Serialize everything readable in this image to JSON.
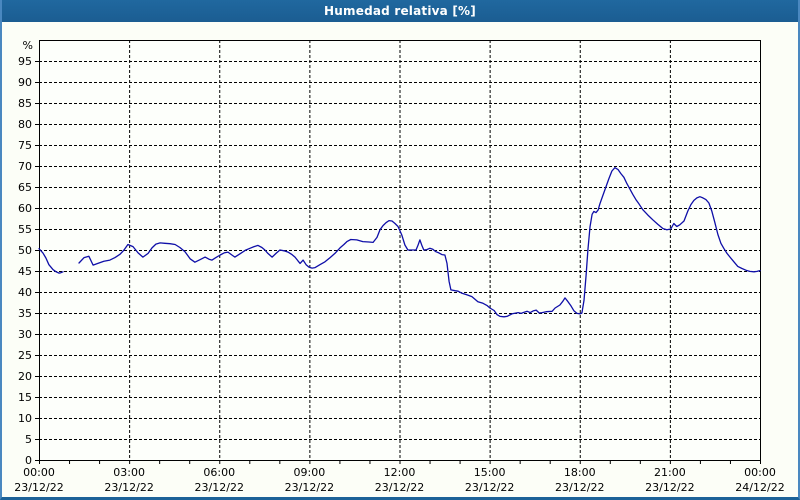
{
  "window": {
    "title": "Humedad relativa [%]"
  },
  "colors": {
    "titlebar": "#1d6298",
    "titlebar_text": "#ffffff",
    "frame_side": "#4a88c0",
    "content_bg": "#fcfef7",
    "plot_bg": "#fdfffb",
    "plot_border": "#000000",
    "grid": "#000000",
    "line": "#0f0fa8",
    "label_text": "#000000"
  },
  "chart_data": {
    "type": "line",
    "title": "Humedad relativa [%]",
    "unit_label": "%",
    "xlabel": "",
    "ylabel": "%",
    "xlim_hours": [
      0,
      24
    ],
    "ylim": [
      0,
      100
    ],
    "grid": "dashed",
    "legend": "none",
    "y_tick_step": 5,
    "y_tick_labels": [
      "0",
      "5",
      "10",
      "15",
      "20",
      "25",
      "30",
      "35",
      "40",
      "45",
      "50",
      "55",
      "60",
      "65",
      "70",
      "75",
      "80",
      "85",
      "90",
      "95"
    ],
    "x_minor_tick_every_hours": 1,
    "x_major_tick_every_hours": 3,
    "x_ticks": [
      {
        "hour": 0,
        "time": "00:00",
        "date": "23/12/22"
      },
      {
        "hour": 3,
        "time": "03:00",
        "date": "23/12/22"
      },
      {
        "hour": 6,
        "time": "06:00",
        "date": "23/12/22"
      },
      {
        "hour": 9,
        "time": "09:00",
        "date": "23/12/22"
      },
      {
        "hour": 12,
        "time": "12:00",
        "date": "23/12/22"
      },
      {
        "hour": 15,
        "time": "15:00",
        "date": "23/12/22"
      },
      {
        "hour": 18,
        "time": "18:00",
        "date": "23/12/22"
      },
      {
        "hour": 21,
        "time": "21:00",
        "date": "23/12/22"
      },
      {
        "hour": 24,
        "time": "00:00",
        "date": "24/12/22"
      }
    ],
    "series": [
      {
        "name": "Humedad relativa",
        "color": "#0f0fa8",
        "segments": [
          [
            [
              0.0,
              50.3
            ],
            [
              0.13,
              49.3
            ],
            [
              0.23,
              48.1
            ],
            [
              0.33,
              46.5
            ],
            [
              0.47,
              45.3
            ],
            [
              0.57,
              44.8
            ],
            [
              0.67,
              44.5
            ],
            [
              0.73,
              44.6
            ],
            [
              0.8,
              44.8
            ]
          ],
          [
            [
              1.33,
              46.9
            ],
            [
              1.5,
              48.2
            ],
            [
              1.66,
              48.5
            ],
            [
              1.8,
              46.4
            ],
            [
              1.96,
              46.8
            ],
            [
              2.16,
              47.3
            ],
            [
              2.36,
              47.6
            ],
            [
              2.53,
              48.2
            ],
            [
              2.7,
              49.0
            ],
            [
              2.83,
              50.0
            ],
            [
              2.96,
              51.3
            ],
            [
              3.13,
              50.8
            ],
            [
              3.3,
              49.3
            ],
            [
              3.46,
              48.3
            ],
            [
              3.63,
              49.2
            ],
            [
              3.76,
              50.5
            ],
            [
              3.89,
              51.4
            ],
            [
              4.03,
              51.7
            ],
            [
              4.19,
              51.6
            ],
            [
              4.36,
              51.5
            ],
            [
              4.53,
              51.3
            ],
            [
              4.69,
              50.6
            ],
            [
              4.86,
              49.6
            ],
            [
              5.03,
              47.9
            ],
            [
              5.19,
              47.1
            ],
            [
              5.36,
              47.7
            ],
            [
              5.53,
              48.3
            ],
            [
              5.66,
              47.8
            ],
            [
              5.76,
              47.6
            ],
            [
              5.89,
              48.2
            ],
            [
              6.03,
              48.8
            ],
            [
              6.16,
              49.3
            ],
            [
              6.29,
              49.5
            ],
            [
              6.42,
              48.8
            ],
            [
              6.52,
              48.3
            ],
            [
              6.69,
              49.1
            ],
            [
              6.86,
              49.9
            ],
            [
              7.02,
              50.4
            ],
            [
              7.16,
              50.8
            ],
            [
              7.29,
              51.1
            ],
            [
              7.42,
              50.6
            ],
            [
              7.52,
              50.0
            ],
            [
              7.62,
              49.2
            ],
            [
              7.76,
              48.3
            ],
            [
              7.89,
              49.2
            ],
            [
              8.02,
              50.0
            ],
            [
              8.16,
              49.8
            ],
            [
              8.29,
              49.5
            ],
            [
              8.42,
              48.9
            ],
            [
              8.52,
              48.3
            ],
            [
              8.62,
              47.4
            ],
            [
              8.69,
              46.8
            ],
            [
              8.79,
              47.6
            ],
            [
              8.89,
              46.5
            ],
            [
              8.99,
              45.9
            ],
            [
              9.09,
              45.7
            ],
            [
              9.19,
              45.8
            ],
            [
              9.35,
              46.5
            ],
            [
              9.52,
              47.2
            ],
            [
              9.69,
              48.2
            ],
            [
              9.85,
              49.2
            ],
            [
              10.02,
              50.5
            ],
            [
              10.15,
              51.3
            ],
            [
              10.25,
              52.0
            ],
            [
              10.38,
              52.5
            ],
            [
              10.58,
              52.4
            ],
            [
              10.78,
              52.0
            ],
            [
              10.98,
              51.9
            ],
            [
              11.12,
              51.8
            ],
            [
              11.25,
              53.0
            ],
            [
              11.35,
              54.8
            ],
            [
              11.45,
              55.8
            ],
            [
              11.55,
              56.5
            ],
            [
              11.65,
              57.0
            ],
            [
              11.75,
              56.9
            ],
            [
              11.85,
              56.3
            ],
            [
              11.95,
              55.6
            ],
            [
              12.02,
              54.5
            ],
            [
              12.08,
              53.5
            ],
            [
              12.18,
              51.2
            ],
            [
              12.28,
              50.0
            ],
            [
              12.55,
              50.0
            ],
            [
              12.61,
              51.0
            ],
            [
              12.68,
              52.4
            ],
            [
              12.75,
              51.0
            ],
            [
              12.81,
              50.0
            ],
            [
              12.91,
              50.1
            ],
            [
              13.01,
              50.4
            ],
            [
              13.11,
              50.2
            ],
            [
              13.21,
              49.6
            ],
            [
              13.31,
              49.3
            ],
            [
              13.41,
              48.9
            ],
            [
              13.51,
              48.8
            ],
            [
              13.58,
              46.8
            ],
            [
              13.65,
              42.5
            ],
            [
              13.71,
              40.5
            ],
            [
              13.85,
              40.3
            ],
            [
              13.95,
              40.2
            ],
            [
              14.08,
              39.7
            ],
            [
              14.25,
              39.3
            ],
            [
              14.41,
              38.9
            ],
            [
              14.61,
              37.7
            ],
            [
              14.78,
              37.3
            ],
            [
              14.91,
              36.8
            ],
            [
              15.01,
              36.2
            ],
            [
              15.15,
              35.6
            ],
            [
              15.25,
              34.6
            ],
            [
              15.35,
              34.2
            ],
            [
              15.48,
              34.1
            ],
            [
              15.58,
              34.2
            ],
            [
              15.75,
              34.8
            ],
            [
              15.95,
              35.1
            ],
            [
              16.05,
              34.9
            ],
            [
              16.15,
              35.2
            ],
            [
              16.25,
              35.4
            ],
            [
              16.35,
              35.1
            ],
            [
              16.45,
              35.5
            ],
            [
              16.55,
              35.7
            ],
            [
              16.65,
              35.0
            ],
            [
              16.75,
              35.1
            ],
            [
              16.88,
              35.3
            ],
            [
              17.08,
              35.4
            ],
            [
              17.18,
              36.2
            ],
            [
              17.34,
              36.9
            ],
            [
              17.44,
              37.8
            ],
            [
              17.51,
              38.6
            ],
            [
              17.61,
              37.7
            ],
            [
              17.71,
              36.7
            ],
            [
              17.81,
              35.5
            ],
            [
              17.91,
              34.9
            ],
            [
              18.01,
              34.8
            ],
            [
              18.07,
              35.0
            ],
            [
              18.14,
              38.0
            ],
            [
              18.21,
              44.0
            ],
            [
              18.27,
              50.0
            ],
            [
              18.34,
              55.5
            ],
            [
              18.41,
              58.5
            ],
            [
              18.47,
              59.2
            ],
            [
              18.54,
              58.9
            ],
            [
              18.61,
              59.5
            ],
            [
              18.67,
              61.0
            ],
            [
              18.77,
              63.0
            ],
            [
              18.87,
              65.0
            ],
            [
              18.97,
              67.0
            ],
            [
              19.07,
              68.8
            ],
            [
              19.17,
              69.6
            ],
            [
              19.27,
              69.2
            ],
            [
              19.37,
              68.2
            ],
            [
              19.47,
              67.3
            ],
            [
              19.57,
              65.8
            ],
            [
              19.67,
              64.5
            ],
            [
              19.77,
              63.2
            ],
            [
              19.87,
              62.0
            ],
            [
              19.97,
              61.0
            ],
            [
              20.1,
              59.6
            ],
            [
              20.27,
              58.3
            ],
            [
              20.43,
              57.2
            ],
            [
              20.6,
              56.1
            ],
            [
              20.77,
              55.1
            ],
            [
              20.9,
              54.8
            ],
            [
              21.03,
              55.0
            ],
            [
              21.13,
              56.3
            ],
            [
              21.23,
              55.6
            ],
            [
              21.33,
              56.0
            ],
            [
              21.47,
              56.9
            ],
            [
              21.6,
              59.3
            ],
            [
              21.7,
              60.8
            ],
            [
              21.8,
              61.8
            ],
            [
              21.9,
              62.4
            ],
            [
              22.0,
              62.7
            ],
            [
              22.1,
              62.4
            ],
            [
              22.2,
              62.0
            ],
            [
              22.3,
              61.2
            ],
            [
              22.4,
              59.2
            ],
            [
              22.5,
              56.5
            ],
            [
              22.6,
              53.7
            ],
            [
              22.7,
              51.6
            ],
            [
              22.8,
              50.3
            ],
            [
              22.9,
              49.2
            ],
            [
              23.0,
              48.3
            ],
            [
              23.13,
              47.2
            ],
            [
              23.26,
              46.1
            ],
            [
              23.4,
              45.6
            ],
            [
              23.53,
              45.2
            ],
            [
              23.66,
              44.9
            ],
            [
              23.8,
              44.8
            ],
            [
              23.9,
              44.9
            ],
            [
              24.0,
              45.1
            ]
          ]
        ]
      }
    ]
  }
}
